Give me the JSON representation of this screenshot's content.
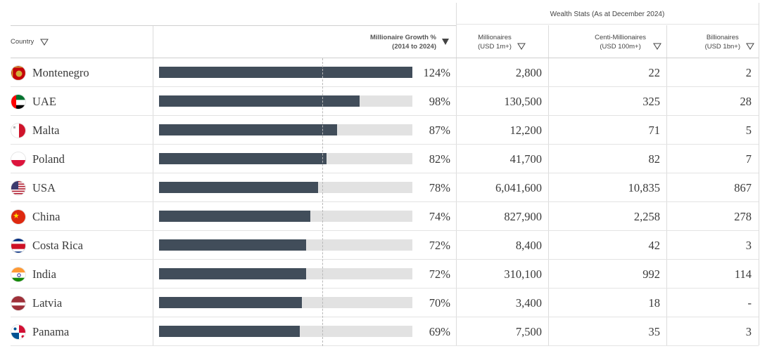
{
  "header": {
    "group_title": "Wealth Stats (As at December 2024)",
    "country": "Country",
    "growth_line1": "Millionaire Growth %",
    "growth_line2": "(2014 to 2024)",
    "millionaires_line1": "Millionaires",
    "millionaires_line2": "(USD 1m+)",
    "centi_line1": "Centi-Millionaires",
    "centi_line2": "(USD 100m+)",
    "billionaires_line1": "Billionaires",
    "billionaires_line2": "(USD 1bn+)"
  },
  "colors": {
    "bar": "#414d5a",
    "track": "#e2e2e2"
  },
  "chart_data": {
    "type": "table",
    "growth_scale_max": 124,
    "reference_line_value": 80,
    "rows": [
      {
        "country": "Montenegro",
        "flag": "montenegro-flag-icon",
        "growth": 124,
        "growth_label": "124%",
        "millionaires": "2,800",
        "centi": "22",
        "billionaires": "2"
      },
      {
        "country": "UAE",
        "flag": "uae-flag-icon",
        "growth": 98,
        "growth_label": "98%",
        "millionaires": "130,500",
        "centi": "325",
        "billionaires": "28"
      },
      {
        "country": "Malta",
        "flag": "malta-flag-icon",
        "growth": 87,
        "growth_label": "87%",
        "millionaires": "12,200",
        "centi": "71",
        "billionaires": "5"
      },
      {
        "country": "Poland",
        "flag": "poland-flag-icon",
        "growth": 82,
        "growth_label": "82%",
        "millionaires": "41,700",
        "centi": "82",
        "billionaires": "7"
      },
      {
        "country": "USA",
        "flag": "usa-flag-icon",
        "growth": 78,
        "growth_label": "78%",
        "millionaires": "6,041,600",
        "centi": "10,835",
        "billionaires": "867"
      },
      {
        "country": "China",
        "flag": "china-flag-icon",
        "growth": 74,
        "growth_label": "74%",
        "millionaires": "827,900",
        "centi": "2,258",
        "billionaires": "278"
      },
      {
        "country": "Costa Rica",
        "flag": "costa-rica-flag-icon",
        "growth": 72,
        "growth_label": "72%",
        "millionaires": "8,400",
        "centi": "42",
        "billionaires": "3"
      },
      {
        "country": "India",
        "flag": "india-flag-icon",
        "growth": 72,
        "growth_label": "72%",
        "millionaires": "310,100",
        "centi": "992",
        "billionaires": "114"
      },
      {
        "country": "Latvia",
        "flag": "latvia-flag-icon",
        "growth": 70,
        "growth_label": "70%",
        "millionaires": "3,400",
        "centi": "18",
        "billionaires": "-"
      },
      {
        "country": "Panama",
        "flag": "panama-flag-icon",
        "growth": 69,
        "growth_label": "69%",
        "millionaires": "7,500",
        "centi": "35",
        "billionaires": "3"
      }
    ]
  }
}
